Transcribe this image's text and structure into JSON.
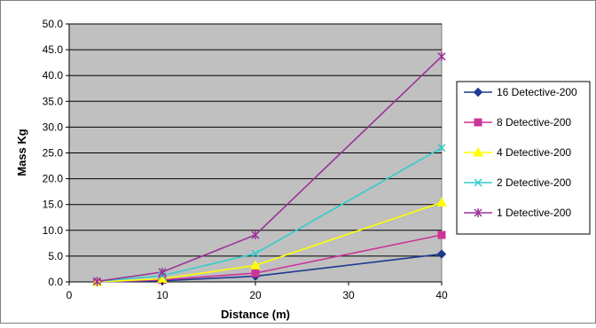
{
  "colors": {
    "plot_background": "#c0c0c0",
    "grid": "#000000",
    "frame": "#808080"
  },
  "chart_data": {
    "type": "line",
    "title": "",
    "xlabel": "Distance (m)",
    "ylabel": "Mass Kg",
    "xlim": [
      0,
      40
    ],
    "ylim": [
      0,
      50
    ],
    "x_ticks": [
      0,
      10,
      20,
      30,
      40
    ],
    "y_ticks": [
      0.0,
      5.0,
      10.0,
      15.0,
      20.0,
      25.0,
      30.0,
      35.0,
      40.0,
      45.0,
      50.0
    ],
    "x_tick_labels": [
      "0",
      "10",
      "20",
      "30",
      "40"
    ],
    "y_tick_labels": [
      "0.0",
      "5.0",
      "10.0",
      "15.0",
      "20.0",
      "25.0",
      "30.0",
      "35.0",
      "40.0",
      "45.0",
      "50.0"
    ],
    "grid": "horizontal",
    "legend_position": "right",
    "x": [
      3,
      10,
      20,
      40
    ],
    "series": [
      {
        "name": "16 Detective-200",
        "color": "#1f3a93",
        "marker": "diamond",
        "values": [
          0.0,
          0.2,
          1.1,
          5.4
        ]
      },
      {
        "name": "8 Detective-200",
        "color": "#cc3399",
        "marker": "square",
        "values": [
          0.0,
          0.4,
          1.7,
          9.1
        ]
      },
      {
        "name": "4 Detective-200",
        "color": "#ffff00",
        "marker": "triangle",
        "values": [
          0.0,
          0.6,
          3.2,
          15.4
        ]
      },
      {
        "name": "2 Detective-200",
        "color": "#33cccc",
        "marker": "x",
        "values": [
          0.1,
          1.2,
          5.5,
          26.0
        ]
      },
      {
        "name": "1 Detective-200",
        "color": "#993399",
        "marker": "star",
        "values": [
          0.1,
          1.9,
          9.1,
          43.7
        ]
      }
    ]
  }
}
